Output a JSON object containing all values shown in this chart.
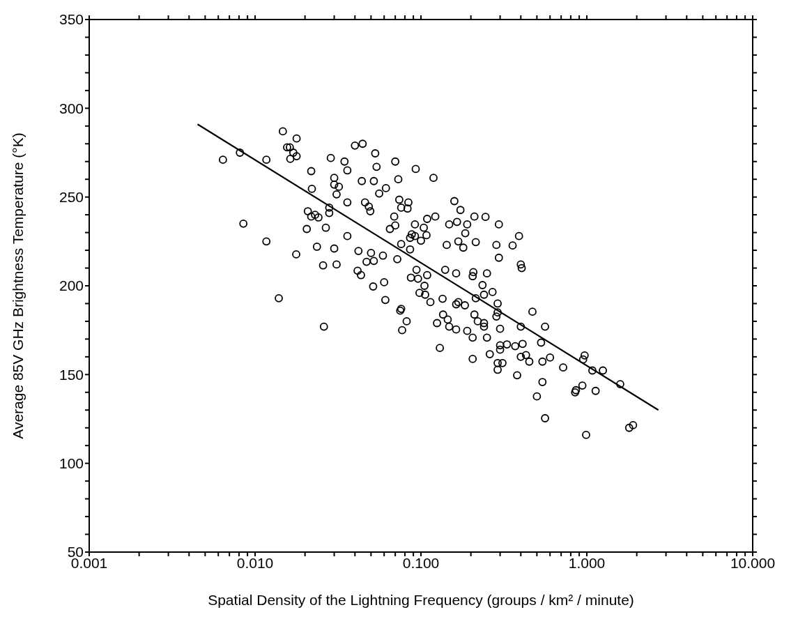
{
  "chart_data": {
    "type": "scatter",
    "xlabel": "Spatial Density of the Lightning Frequency (groups / km² / minute)",
    "ylabel": "Average 85V GHz Brightness Temperature (°K)",
    "log": "x",
    "grid": false,
    "legend": false,
    "xlim": [
      0.001,
      10
    ],
    "ylim": [
      50,
      350
    ],
    "xticks": [
      {
        "value": 0.001,
        "label": "0.001"
      },
      {
        "value": 0.002,
        "label": null
      },
      {
        "value": 0.003,
        "label": null
      },
      {
        "value": 0.004,
        "label": null
      },
      {
        "value": 0.005,
        "label": null
      },
      {
        "value": 0.006,
        "label": null
      },
      {
        "value": 0.007,
        "label": null
      },
      {
        "value": 0.008,
        "label": null
      },
      {
        "value": 0.009,
        "label": null
      },
      {
        "value": 0.01,
        "label": "0.010"
      },
      {
        "value": 0.02,
        "label": null
      },
      {
        "value": 0.03,
        "label": null
      },
      {
        "value": 0.04,
        "label": null
      },
      {
        "value": 0.05,
        "label": null
      },
      {
        "value": 0.06,
        "label": null
      },
      {
        "value": 0.07,
        "label": null
      },
      {
        "value": 0.08,
        "label": null
      },
      {
        "value": 0.09,
        "label": null
      },
      {
        "value": 0.1,
        "label": "0.100"
      },
      {
        "value": 0.2,
        "label": null
      },
      {
        "value": 0.3,
        "label": null
      },
      {
        "value": 0.4,
        "label": null
      },
      {
        "value": 0.5,
        "label": null
      },
      {
        "value": 0.6,
        "label": null
      },
      {
        "value": 0.7,
        "label": null
      },
      {
        "value": 0.8,
        "label": null
      },
      {
        "value": 0.9,
        "label": null
      },
      {
        "value": 1,
        "label": "1.000"
      },
      {
        "value": 2,
        "label": null
      },
      {
        "value": 3,
        "label": null
      },
      {
        "value": 4,
        "label": null
      },
      {
        "value": 5,
        "label": null
      },
      {
        "value": 6,
        "label": null
      },
      {
        "value": 7,
        "label": null
      },
      {
        "value": 8,
        "label": null
      },
      {
        "value": 9,
        "label": null
      },
      {
        "value": 10,
        "label": "10.000"
      }
    ],
    "yticks": [
      50,
      {
        "value": 60,
        "label": null
      },
      {
        "value": 70,
        "label": null
      },
      {
        "value": 80,
        "label": null
      },
      {
        "value": 90,
        "label": null
      },
      100,
      {
        "value": 110,
        "label": null
      },
      {
        "value": 120,
        "label": null
      },
      {
        "value": 130,
        "label": null
      },
      {
        "value": 140,
        "label": null
      },
      150,
      {
        "value": 160,
        "label": null
      },
      {
        "value": 170,
        "label": null
      },
      {
        "value": 180,
        "label": null
      },
      {
        "value": 190,
        "label": null
      },
      200,
      {
        "value": 210,
        "label": null
      },
      {
        "value": 220,
        "label": null
      },
      {
        "value": 230,
        "label": null
      },
      {
        "value": 240,
        "label": null
      },
      250,
      {
        "value": 260,
        "label": null
      },
      {
        "value": 270,
        "label": null
      },
      {
        "value": 280,
        "label": null
      },
      {
        "value": 290,
        "label": null
      },
      300,
      {
        "value": 310,
        "label": null
      },
      {
        "value": 320,
        "label": null
      },
      {
        "value": 330,
        "label": null
      },
      {
        "value": 340,
        "label": null
      },
      350
    ],
    "series": [
      {
        "color": "#000000",
        "marker": "circle",
        "x": [
          0.0064,
          0.0081,
          0.0117,
          0.0085,
          0.0117,
          0.0147,
          0.0156,
          0.0178,
          0.0162,
          0.017,
          0.0178,
          0.0163,
          0.0139,
          0.0177,
          0.0218,
          0.022,
          0.0208,
          0.0218,
          0.0241,
          0.023,
          0.0205,
          0.0267,
          0.0236,
          0.0257,
          0.026,
          0.0286,
          0.0346,
          0.036,
          0.03,
          0.03,
          0.032,
          0.031,
          0.028,
          0.028,
          0.036,
          0.03,
          0.031,
          0.036,
          0.042,
          0.0415,
          0.0435,
          0.04,
          0.0445,
          0.044,
          0.052,
          0.053,
          0.054,
          0.046,
          0.0485,
          0.0495,
          0.056,
          0.0615,
          0.07,
          0.073,
          0.093,
          0.074,
          0.084,
          0.076,
          0.083,
          0.069,
          0.07,
          0.065,
          0.092,
          0.047,
          0.052,
          0.05,
          0.059,
          0.072,
          0.0515,
          0.06,
          0.061,
          0.076,
          0.075,
          0.082,
          0.077,
          0.086,
          0.092,
          0.076,
          0.086,
          0.094,
          0.087,
          0.096,
          0.119,
          0.159,
          0.173,
          0.109,
          0.122,
          0.104,
          0.108,
          0.1,
          0.088,
          0.148,
          0.165,
          0.19,
          0.21,
          0.245,
          0.295,
          0.185,
          0.143,
          0.168,
          0.18,
          0.214,
          0.285,
          0.357,
          0.39,
          0.295,
          0.4,
          0.405,
          0.109,
          0.105,
          0.098,
          0.106,
          0.114,
          0.14,
          0.163,
          0.207,
          0.205,
          0.25,
          0.235,
          0.27,
          0.214,
          0.24,
          0.29,
          0.29,
          0.47,
          0.135,
          0.168,
          0.163,
          0.184,
          0.136,
          0.145,
          0.125,
          0.148,
          0.163,
          0.21,
          0.24,
          0.24,
          0.19,
          0.3,
          0.4,
          0.56,
          0.205,
          0.13,
          0.205,
          0.22,
          0.25,
          0.26,
          0.285,
          0.3,
          0.3,
          0.33,
          0.37,
          0.41,
          0.29,
          0.31,
          0.29,
          0.4,
          0.43,
          0.45,
          0.38,
          0.53,
          0.54,
          0.6,
          0.72,
          0.54,
          0.5,
          0.56,
          0.97,
          0.95,
          0.94,
          0.86,
          0.85,
          1.13,
          1.08,
          1.25,
          1.59,
          0.99,
          1.8,
          1.9
        ],
        "values": [
          271,
          275,
          271,
          235,
          225,
          287,
          278,
          283,
          278,
          275,
          273,
          271.5,
          193,
          217.7,
          264.6,
          254.6,
          242,
          239,
          238.5,
          240,
          232,
          232.7,
          222,
          211.5,
          177,
          272,
          270,
          265,
          260.8,
          257,
          255.8,
          251.5,
          244,
          241,
          247,
          221,
          212,
          228,
          219.6,
          208.5,
          206,
          279,
          280,
          259,
          259,
          274.6,
          267,
          247,
          244.6,
          242,
          252,
          255,
          270,
          260,
          265.8,
          248.5,
          247,
          244,
          243.5,
          239,
          234,
          232,
          234.6,
          213.5,
          214,
          218.5,
          217,
          215,
          199.6,
          202,
          192,
          187,
          186,
          180,
          175,
          227,
          228,
          223.5,
          220.5,
          209,
          204.6,
          204,
          260.8,
          247.7,
          242.7,
          237.7,
          239,
          232.7,
          228.5,
          225.4,
          229,
          234.6,
          236,
          234.6,
          239,
          238.8,
          234.6,
          229.6,
          223,
          225,
          221.5,
          224.6,
          223,
          222.7,
          228,
          215.8,
          212,
          210,
          206,
          200,
          196,
          195,
          190.8,
          209,
          207,
          207.7,
          205.4,
          207,
          200.4,
          196.5,
          193,
          195,
          190,
          185,
          185.4,
          192.7,
          190.8,
          189.6,
          189,
          183.8,
          181,
          179,
          177,
          175.4,
          183.8,
          179,
          177,
          174.6,
          175.8,
          177,
          177,
          170.8,
          165,
          158.8,
          180,
          170.8,
          161.5,
          182.7,
          166.5,
          164,
          167,
          166,
          167.3,
          156.5,
          156.5,
          152.7,
          160,
          161,
          157.3,
          149.6,
          168,
          157.3,
          159.6,
          154,
          145.8,
          137.7,
          125.4,
          160.8,
          158.5,
          143.8,
          141.2,
          140,
          140.8,
          152.3,
          152.3,
          144.6,
          116,
          120,
          121.5
        ]
      },
      {
        "type": "line",
        "color": "#000000",
        "line_style": "solid",
        "x": [
          0.0045,
          2.7
        ],
        "values": [
          291,
          130
        ]
      }
    ]
  }
}
